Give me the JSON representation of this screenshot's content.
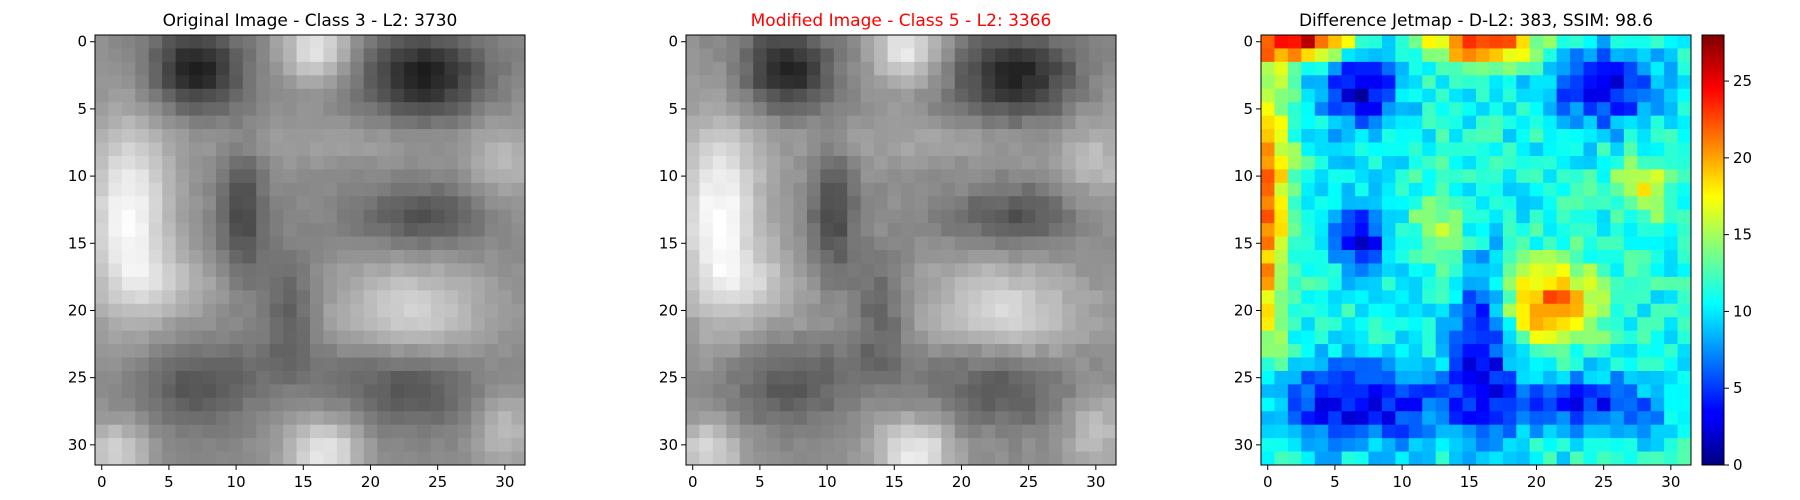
{
  "figure": {
    "background": "#ffffff"
  },
  "chart_data": [
    {
      "type": "heatmap",
      "title": "Original Image - Class 3 - L2: 3730",
      "title_color": "#000000",
      "colormap": "gray",
      "grid": false,
      "xlim": [
        -0.5,
        31.5
      ],
      "ylim": [
        31.5,
        -0.5
      ],
      "xticks": [
        0,
        5,
        10,
        15,
        20,
        25,
        30
      ],
      "yticks": [
        0,
        5,
        10,
        15,
        20,
        25,
        30
      ],
      "size": [
        32,
        32
      ],
      "value_range": [
        0,
        255
      ],
      "pattern": {
        "description_values": "grayscale texture: dark blobs at rows 0-6 cols 5-10 and 20-28, bright region rows 9-22 cols 0-4, mid-gray elsewhere",
        "kind": "original"
      }
    },
    {
      "type": "heatmap",
      "title": "Modified Image - Class 5 - L2: 3366",
      "title_color": "#ff0000",
      "colormap": "gray",
      "grid": false,
      "xlim": [
        -0.5,
        31.5
      ],
      "ylim": [
        31.5,
        -0.5
      ],
      "xticks": [
        0,
        5,
        10,
        15,
        20,
        25,
        30
      ],
      "yticks": [
        0,
        5,
        10,
        15,
        20,
        25,
        30
      ],
      "size": [
        32,
        32
      ],
      "value_range": [
        0,
        255
      ],
      "pattern": {
        "kind": "modified"
      }
    },
    {
      "type": "heatmap",
      "title": "Difference Jetmap - D-L2: 383, SSIM: 98.6",
      "title_color": "#000000",
      "colormap": "jet",
      "grid": false,
      "xlim": [
        -0.5,
        31.5
      ],
      "ylim": [
        31.5,
        -0.5
      ],
      "xticks": [
        0,
        5,
        10,
        15,
        20,
        25,
        30
      ],
      "yticks": [
        0,
        5,
        10,
        15,
        20,
        25,
        30
      ],
      "size": [
        32,
        32
      ],
      "value_range": [
        0,
        28
      ],
      "colorbar": {
        "placement": "right",
        "ticks": [
          0,
          5,
          10,
          15,
          20,
          25
        ],
        "range": [
          0,
          28
        ]
      },
      "pattern": {
        "kind": "difference"
      }
    }
  ]
}
